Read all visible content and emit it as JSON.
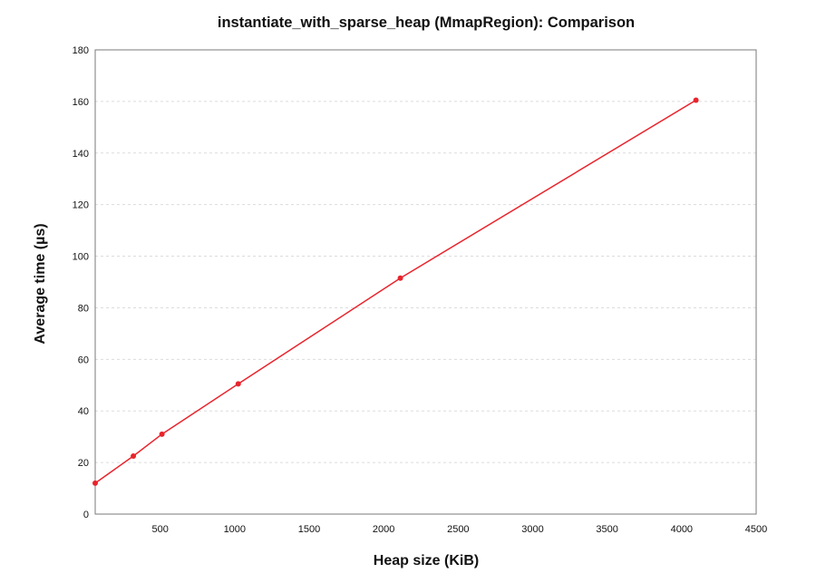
{
  "chart_data": {
    "type": "line",
    "title": "instantiate_with_sparse_heap (MmapRegion): Comparison",
    "xlabel": "Heap size (KiB)",
    "ylabel": "Average time (µs)",
    "xlim": [
      64,
      4500
    ],
    "ylim": [
      0,
      180
    ],
    "xticks": [
      500,
      1000,
      1500,
      2000,
      2500,
      3000,
      3500,
      4000,
      4500
    ],
    "yticks": [
      0,
      20,
      40,
      60,
      80,
      100,
      120,
      140,
      160,
      180
    ],
    "grid": "horizontal dashed",
    "series": [
      {
        "color": "#e8242c",
        "x": [
          64,
          320,
          512,
          1024,
          2112,
          4096
        ],
        "y": [
          12,
          22.5,
          31,
          50.5,
          91.5,
          160.5
        ]
      }
    ]
  }
}
